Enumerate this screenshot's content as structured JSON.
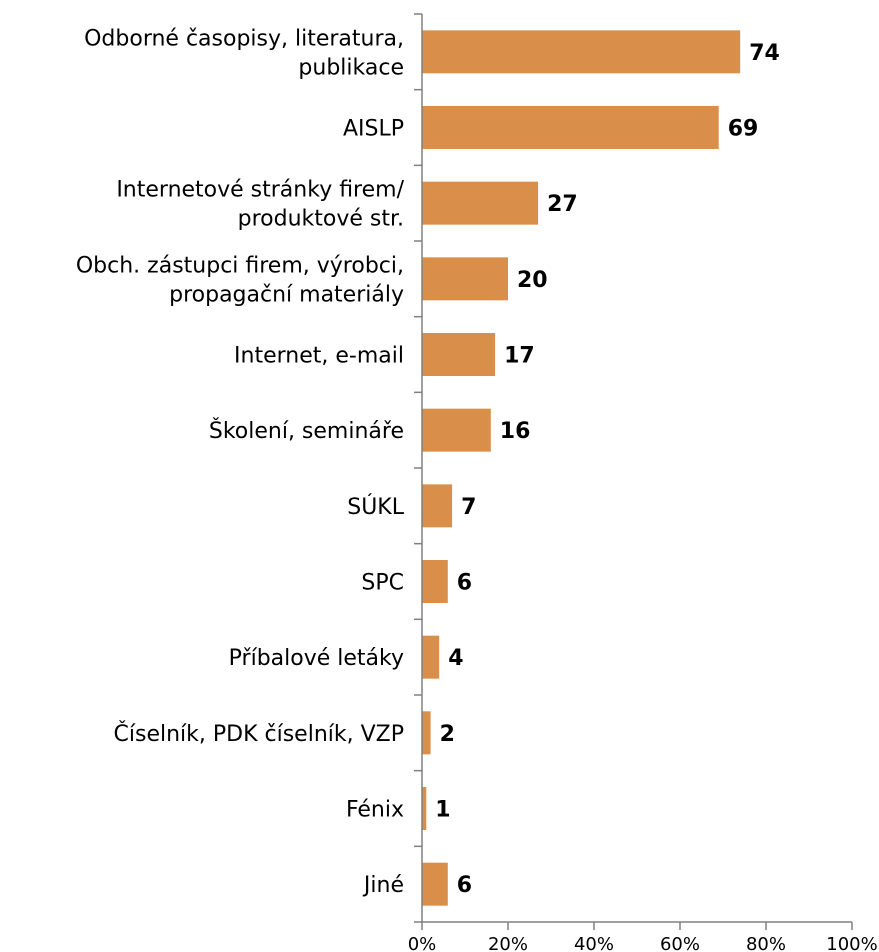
{
  "chart_data": {
    "type": "bar",
    "orientation": "horizontal",
    "categories": [
      [
        "Odborné časopisy, literatura,",
        "publikace"
      ],
      [
        "AISLP"
      ],
      [
        "Internetové stránky firem/",
        "produktové str."
      ],
      [
        "Obch. zástupci firem, výrobci,",
        "propagační materiály"
      ],
      [
        "Internet, e-mail"
      ],
      [
        "Školení, semináře"
      ],
      [
        "SÚKL"
      ],
      [
        "SPC"
      ],
      [
        "Příbalové letáky"
      ],
      [
        "Číselník, PDK číselník, VZP"
      ],
      [
        "Fénix"
      ],
      [
        "Jiné"
      ]
    ],
    "values": [
      74,
      69,
      27,
      20,
      17,
      16,
      7,
      6,
      4,
      2,
      1,
      6
    ],
    "value_labels": [
      "74",
      "69",
      "27",
      "20",
      "17",
      "16",
      "7",
      "6",
      "4",
      "2",
      "1",
      "6"
    ],
    "xlim": [
      0,
      100
    ],
    "xticks": [
      0,
      20,
      40,
      60,
      80,
      100
    ],
    "xtick_labels": [
      "0%",
      "20%",
      "40%",
      "60%",
      "80%",
      "100%"
    ],
    "bar_color": "#D98F4A",
    "grid": false,
    "legend": "none"
  }
}
